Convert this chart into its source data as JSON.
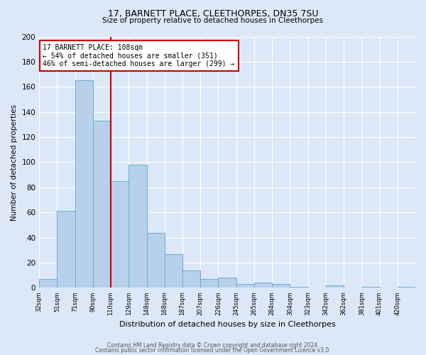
{
  "title1": "17, BARNETT PLACE, CLEETHORPES, DN35 7SU",
  "title2": "Size of property relative to detached houses in Cleethorpes",
  "xlabel": "Distribution of detached houses by size in Cleethorpes",
  "ylabel": "Number of detached properties",
  "bin_labels": [
    "32sqm",
    "51sqm",
    "71sqm",
    "90sqm",
    "110sqm",
    "129sqm",
    "148sqm",
    "168sqm",
    "187sqm",
    "207sqm",
    "226sqm",
    "245sqm",
    "265sqm",
    "284sqm",
    "304sqm",
    "323sqm",
    "342sqm",
    "362sqm",
    "381sqm",
    "401sqm",
    "420sqm"
  ],
  "bin_values": [
    7,
    61,
    165,
    133,
    85,
    98,
    44,
    27,
    14,
    7,
    8,
    3,
    4,
    3,
    1,
    0,
    2,
    0,
    1,
    0,
    1
  ],
  "bar_color": "#b8d0ea",
  "bar_edge_color": "#6aaed6",
  "annotation_title": "17 BARNETT PLACE: 108sqm",
  "annotation_line1": "← 54% of detached houses are smaller (351)",
  "annotation_line2": "46% of semi-detached houses are larger (299) →",
  "annotation_box_color": "#ffffff",
  "annotation_box_edge": "#cc0000",
  "vline_color": "#cc0000",
  "ylim": [
    0,
    200
  ],
  "yticks": [
    0,
    20,
    40,
    60,
    80,
    100,
    120,
    140,
    160,
    180,
    200
  ],
  "footer1": "Contains HM Land Registry data © Crown copyright and database right 2024.",
  "footer2": "Contains public sector information licensed under the Open Government Licence v3.0.",
  "bg_color": "#dce8f8",
  "plot_bg_color": "#dce8f8"
}
